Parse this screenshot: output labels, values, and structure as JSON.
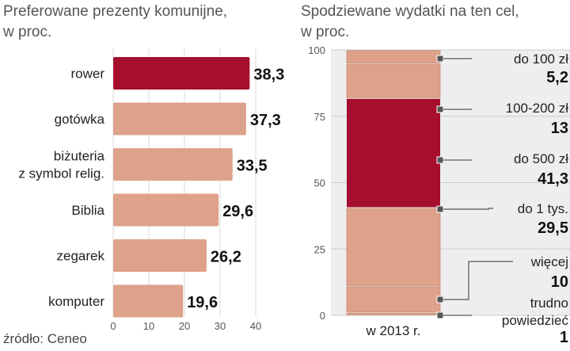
{
  "chart_data": [
    {
      "type": "bar",
      "orientation": "horizontal",
      "title": [
        "Preferowane prezenty komunijne,",
        "w proc."
      ],
      "categories": [
        [
          "rower"
        ],
        [
          "gotówka"
        ],
        [
          "biżuteria",
          "z symbol relig."
        ],
        [
          "Biblia"
        ],
        [
          "zegarek"
        ],
        [
          "komputer"
        ]
      ],
      "values": [
        38.3,
        37.3,
        33.5,
        29.6,
        26.2,
        19.6
      ],
      "value_labels": [
        "38,3",
        "37,3",
        "33,5",
        "29,6",
        "26,2",
        "19,6"
      ],
      "highlight_index": 0,
      "xlim": [
        0,
        40
      ],
      "xticks": [
        0,
        10,
        20,
        30,
        40
      ],
      "colors": {
        "bar": "#dea18a",
        "highlight": "#a50f2d",
        "grid": "#d9d9d9"
      }
    },
    {
      "type": "bar",
      "stacked": true,
      "title": [
        "Spodziewane wydatki na ten cel,",
        "w proc."
      ],
      "categories": [
        "w 2013 r."
      ],
      "ylim": [
        0,
        100
      ],
      "yticks": [
        0,
        25,
        50,
        75,
        100
      ],
      "segments_bottom_to_top": [
        {
          "label": [
            "trudno",
            "powiedzieć"
          ],
          "value": 1,
          "value_label": "1",
          "highlight": false
        },
        {
          "label": [
            "więcej"
          ],
          "value": 10,
          "value_label": "10",
          "highlight": false
        },
        {
          "label": [
            "do 1 tys."
          ],
          "value": 29.5,
          "value_label": "29,5",
          "highlight": false
        },
        {
          "label": [
            "do 500 zł"
          ],
          "value": 41.3,
          "value_label": "41,3",
          "highlight": true
        },
        {
          "label": [
            "100-200 zł"
          ],
          "value": 13,
          "value_label": "13",
          "highlight": false
        },
        {
          "label": [
            "do 100 zł"
          ],
          "value": 5.2,
          "value_label": "5,2",
          "highlight": false
        }
      ],
      "colors": {
        "bar": "#dea18a",
        "highlight": "#a50f2d",
        "bg": "#eeeeee",
        "grid": "#cccccc",
        "leader": "#333333"
      }
    }
  ],
  "source": "źródło: Ceneo"
}
